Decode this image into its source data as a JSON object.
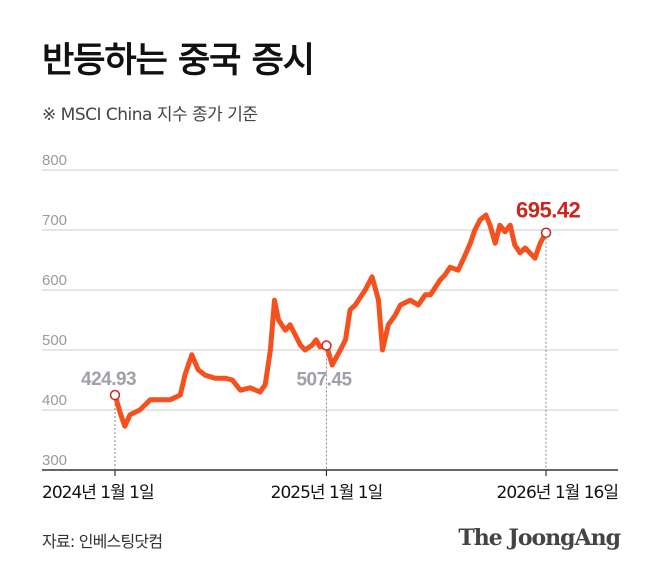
{
  "title": "반등하는 중국 증시",
  "subtitle": "※ MSCI China 지수 종가 기준",
  "source": "자료: 인베스팅닷컴",
  "logo": "The JoongAng",
  "chart_data": {
    "type": "line",
    "title": "반등하는 중국 증시",
    "subtitle": "※ MSCI China 지수 종가 기준",
    "ylim": [
      300,
      800
    ],
    "yticks": [
      "800",
      "700",
      "600",
      "500",
      "400",
      "300"
    ],
    "xticks": [
      {
        "date": "2024-01-01",
        "label": "2024년 1월 1일"
      },
      {
        "date": "2025-01-01",
        "label": "2025년 1월 1일"
      },
      {
        "date": "2026-01-16",
        "label": "2026년 1월 16일"
      }
    ],
    "grid": true,
    "colors": {
      "line": "#f4511e",
      "highlight": "#c8281e",
      "annotation": "#a0a0a8",
      "grid": "#d8d8d8"
    },
    "annotations": [
      {
        "date": "2024-01-01",
        "value": 424.93,
        "label": "424.93",
        "style": "gray"
      },
      {
        "date": "2025-01-01",
        "value": 507.45,
        "label": "507.45",
        "style": "gray"
      },
      {
        "date": "2026-01-16",
        "value": 695.42,
        "label": "695.42",
        "style": "highlight"
      }
    ],
    "series": [
      {
        "x": [
          "2024-01-01",
          "2024-01-10",
          "2024-01-18",
          "2024-01-27",
          "2024-02-13",
          "2024-03-02",
          "2024-03-19",
          "2024-04-05",
          "2024-04-23",
          "2024-05-01",
          "2024-05-13",
          "2024-05-24",
          "2024-06-05",
          "2024-06-22",
          "2024-07-10",
          "2024-07-22",
          "2024-08-05",
          "2024-08-22",
          "2024-09-08",
          "2024-09-17",
          "2024-09-26",
          "2024-10-03",
          "2024-10-10",
          "2024-10-22",
          "2024-10-30",
          "2024-11-08",
          "2024-11-17",
          "2024-11-25",
          "2024-12-07",
          "2024-12-14",
          "2024-12-21",
          "2025-01-01",
          "2025-01-11",
          "2025-01-25",
          "2025-02-03",
          "2025-02-11",
          "2025-02-20",
          "2025-03-09",
          "2025-03-21",
          "2025-04-01",
          "2025-04-08",
          "2025-04-18",
          "2025-04-30",
          "2025-05-09",
          "2025-05-26",
          "2025-06-09",
          "2025-06-21",
          "2025-06-30",
          "2025-07-17",
          "2025-07-25",
          "2025-08-03",
          "2025-08-17",
          "2025-08-29",
          "2025-09-07",
          "2025-09-15",
          "2025-09-24",
          "2025-10-04",
          "2025-10-11",
          "2025-10-20",
          "2025-10-28",
          "2025-11-06",
          "2025-11-15",
          "2025-11-23",
          "2025-12-02",
          "2025-12-11",
          "2025-12-19",
          "2025-12-28",
          "2026-01-06",
          "2026-01-16"
        ],
        "values": [
          424.93,
          395,
          373,
          392,
          400,
          417,
          417,
          417,
          425,
          458,
          492,
          467,
          458,
          453,
          453,
          450,
          433,
          437,
          430,
          442,
          500,
          583,
          550,
          533,
          542,
          525,
          508,
          500,
          508,
          517,
          505,
          507.45,
          475,
          500,
          517,
          567,
          575,
          600,
          622,
          583,
          500,
          542,
          558,
          575,
          583,
          575,
          592,
          592,
          617,
          625,
          638,
          633,
          658,
          678,
          700,
          717,
          725,
          708,
          678,
          708,
          697,
          708,
          675,
          662,
          670,
          662,
          653,
          678,
          695.42
        ]
      }
    ]
  }
}
